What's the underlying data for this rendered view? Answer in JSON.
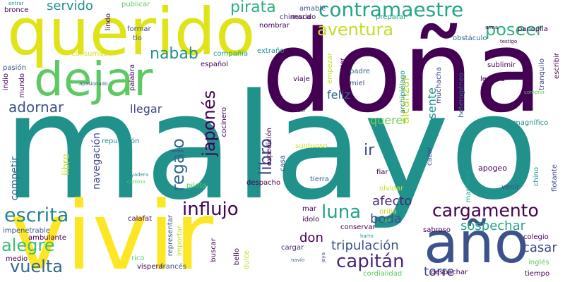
{
  "palette": {
    "purple": "#440154",
    "indigo": "#3b528b",
    "blue": "#31688e",
    "teal": "#21918c",
    "green": "#35b779",
    "lightgreen": "#5ec962",
    "lime": "#90d743",
    "yellow": "#fde725",
    "background": "#ffffff"
  },
  "words": [
    "doña",
    "malayo",
    "vivir",
    "querido",
    "año",
    "dejar",
    "contramaestre",
    "cargamento",
    "escrita",
    "influjo",
    "aventura",
    "poseer",
    "capitán",
    "alegre",
    "vuelta",
    "luna",
    "adornar",
    "japonés",
    "regalo",
    "libro",
    "nabab",
    "pirata",
    "servido",
    "tripulación",
    "ir",
    "sospechar",
    "afecto",
    "boda",
    "querer",
    "llegar",
    "feliz",
    "don",
    "torre",
    "casar",
    "alcanzar",
    "presente",
    "navegación",
    "competir",
    "libre",
    "apogeo",
    "magnífico",
    "panoplia",
    "sublimir",
    "muchacha",
    "heterogéneo",
    "chinesca",
    "marido",
    "amable",
    "preparar",
    "obstáculo",
    "arma",
    "testigo",
    "publicar",
    "bronce",
    "entrar",
    "pasión",
    "indio",
    "mundo",
    "apasionado",
    "consumado",
    "lindo",
    "formar",
    "tío",
    "palabra",
    "español",
    "compañía",
    "extraño",
    "nombrar",
    "lectura",
    "empezar",
    "recorrer",
    "padre",
    "miel",
    "viaje",
    "reputación",
    "expedición",
    "cocinero",
    "suntuoso",
    "casa",
    "archipiélago",
    "comprar",
    "salir",
    "tranquilo",
    "escribir",
    "flotante",
    "chino",
    "marinero",
    "cazar",
    "fiar",
    "tierra",
    "despacho",
    "olvidar",
    "venir",
    "piloto",
    "bayadera",
    "camino",
    "mar",
    "orilla",
    "conservar",
    "calafat",
    "ídolo",
    "impenetrable",
    "ambulante",
    "medio",
    "rico",
    "víspera",
    "francés",
    "representar",
    "importar",
    "buscar",
    "bello",
    "dulce",
    "cargar",
    "navío",
    "joya",
    "harto",
    "luer",
    "sabroso",
    "colegio",
    "inglés",
    "despachar",
    "cordialidad",
    "tiempo"
  ]
}
